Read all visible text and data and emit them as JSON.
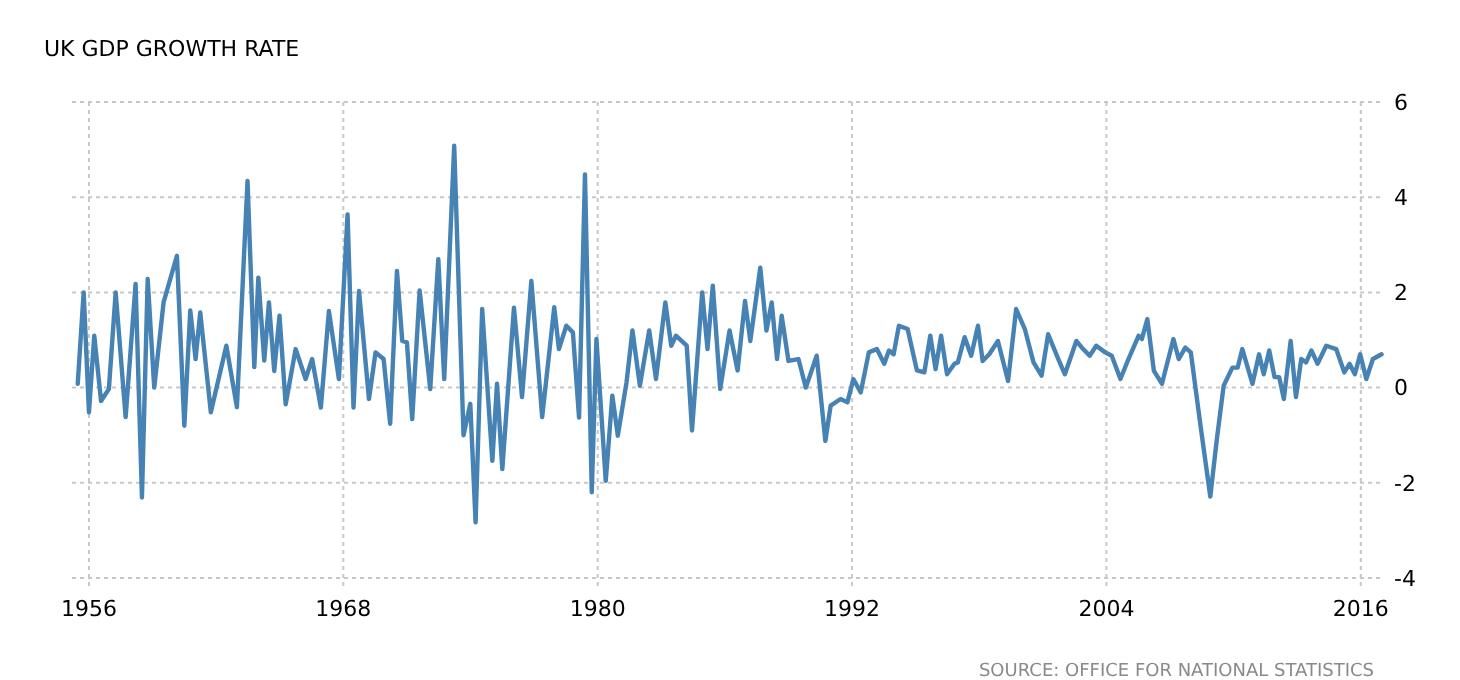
{
  "chart_data": {
    "type": "line",
    "title": "UK GDP GROWTH RATE",
    "annotations": [
      "SOURCE: OFFICE FOR NATIONAL STATISTICS"
    ],
    "xlim": [
      1955.2,
      2017.0
    ],
    "xticks": [
      1956,
      1968,
      1980,
      1992,
      2004,
      2016
    ],
    "ylim": [
      -4,
      6
    ],
    "yticks": [
      -4,
      -2,
      0,
      2,
      4,
      6
    ],
    "grid": true,
    "line_style": "solid",
    "x": [
      1955.47,
      1955.75,
      1956.0,
      1956.25,
      1956.57,
      1956.94,
      1957.26,
      1957.73,
      1958.2,
      1958.5,
      1958.77,
      1959.08,
      1959.52,
      1960.15,
      1960.5,
      1960.78,
      1961.03,
      1961.25,
      1961.75,
      1962.48,
      1962.98,
      1963.48,
      1963.8,
      1963.99,
      1964.27,
      1964.49,
      1964.74,
      1964.99,
      1965.28,
      1965.75,
      1966.22,
      1966.53,
      1966.94,
      1967.32,
      1967.79,
      1968.2,
      1968.48,
      1968.74,
      1969.21,
      1969.52,
      1969.9,
      1970.21,
      1970.53,
      1970.78,
      1971.0,
      1971.25,
      1971.6,
      1972.1,
      1972.48,
      1972.76,
      1973.23,
      1973.67,
      1973.99,
      1974.24,
      1974.55,
      1975.03,
      1975.25,
      1975.5,
      1976.05,
      1976.43,
      1976.87,
      1977.38,
      1977.95,
      1978.17,
      1978.52,
      1978.83,
      1979.12,
      1979.4,
      1979.72,
      1979.94,
      1980.38,
      1980.69,
      1980.95,
      1981.36,
      1981.64,
      1981.99,
      1982.43,
      1982.75,
      1983.19,
      1983.47,
      1983.69,
      1984.2,
      1984.45,
      1984.93,
      1985.18,
      1985.43,
      1985.78,
      1986.22,
      1986.6,
      1986.95,
      1987.2,
      1987.67,
      1987.96,
      1988.21,
      1988.46,
      1988.68,
      1989.0,
      1989.47,
      1989.82,
      1990.33,
      1990.74,
      1990.99,
      1991.46,
      1991.78,
      1992.06,
      1992.41,
      1992.79,
      1993.17,
      1993.52,
      1993.74,
      1993.96,
      1994.21,
      1994.62,
      1995.06,
      1995.41,
      1995.69,
      1995.94,
      1996.2,
      1996.48,
      1996.83,
      1996.99,
      1997.31,
      1997.62,
      1997.94,
      1998.16,
      1998.47,
      1998.88,
      1999.36,
      1999.74,
      2000.15,
      2000.56,
      2000.94,
      2001.25,
      2001.73,
      2002.04,
      2002.58,
      2002.9,
      2003.21,
      2003.52,
      2003.94,
      2004.25,
      2004.66,
      2005.04,
      2005.52,
      2005.67,
      2005.93,
      2006.24,
      2006.62,
      2007.16,
      2007.41,
      2007.72,
      2007.98,
      2008.45,
      2008.9,
      2009.21,
      2009.53,
      2009.94,
      2010.19,
      2010.41,
      2010.89,
      2011.2,
      2011.42,
      2011.68,
      2011.93,
      2012.15,
      2012.37,
      2012.69,
      2012.94,
      2013.19,
      2013.42,
      2013.67,
      2013.96,
      2014.37,
      2014.84,
      2015.22,
      2015.47,
      2015.72,
      2015.97,
      2016.26,
      2016.57,
      2016.98
    ],
    "series": [
      {
        "color": "#4682b4",
        "values": [
          0.08,
          2.0,
          -0.52,
          1.09,
          -0.28,
          -0.03,
          2.0,
          -0.62,
          2.18,
          -2.31,
          2.28,
          0,
          1.79,
          2.77,
          -0.8,
          1.62,
          0.6,
          1.58,
          -0.52,
          0.88,
          -0.41,
          4.34,
          0.43,
          2.31,
          0.57,
          1.79,
          0.35,
          1.51,
          -0.35,
          0.81,
          0.18,
          0.6,
          -0.42,
          1.61,
          0.18,
          3.64,
          -0.42,
          2.03,
          -0.24,
          0.74,
          0.6,
          -0.76,
          2.45,
          0.98,
          0.95,
          -0.66,
          2.04,
          -0.03,
          2.7,
          0.18,
          5.08,
          -1.0,
          -0.34,
          -2.83,
          1.65,
          -1.54,
          0.08,
          -1.71,
          1.68,
          -0.2,
          2.24,
          -0.62,
          1.69,
          0.81,
          1.3,
          1.16,
          -0.63,
          4.48,
          -2.2,
          1.02,
          -1.96,
          -0.17,
          -1.01,
          0.11,
          1.2,
          0.04,
          1.2,
          0.18,
          1.79,
          0.88,
          1.09,
          0.88,
          -0.9,
          2.0,
          0.81,
          2.14,
          -0.03,
          1.2,
          0.36,
          1.82,
          0.98,
          2.52,
          1.2,
          1.79,
          0.6,
          1.51,
          0.56,
          0.6,
          0,
          0.67,
          -1.12,
          -0.38,
          -0.24,
          -0.31,
          0.18,
          -0.1,
          0.74,
          0.81,
          0.5,
          0.78,
          0.7,
          1.3,
          1.23,
          0.36,
          0.32,
          1.09,
          0.39,
          1.09,
          0.28,
          0.5,
          0.53,
          1.06,
          0.67,
          1.3,
          0.56,
          0.7,
          0.98,
          0.14,
          1.65,
          1.23,
          0.53,
          0.25,
          1.12,
          0.6,
          0.28,
          0.98,
          0.81,
          0.67,
          0.88,
          0.74,
          0.67,
          0.18,
          0.6,
          1.09,
          1.02,
          1.44,
          0.35,
          0.08,
          1.02,
          0.6,
          0.84,
          0.74,
          -0.84,
          -2.29,
          -1.08,
          0.04,
          0.42,
          0.42,
          0.81,
          0.08,
          0.7,
          0.28,
          0.78,
          0.22,
          0.22,
          -0.24,
          0.98,
          -0.2,
          0.6,
          0.53,
          0.78,
          0.5,
          0.88,
          0.81,
          0.32,
          0.5,
          0.28,
          0.7,
          0.18,
          0.6,
          0.7
        ]
      }
    ]
  }
}
